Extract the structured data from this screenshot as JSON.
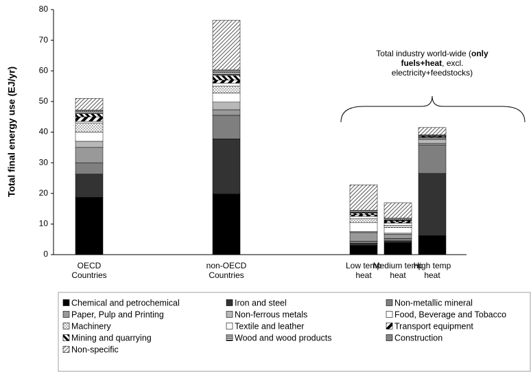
{
  "chart_data": {
    "type": "stacked_bar",
    "y_label": "Total final energy use (EJ/yr)",
    "annotation": [
      "Total industry world-wide (",
      "only fuels+heat",
      ", excl. electricity+feedstocks)"
    ],
    "categories": [
      "OECD\nCountries",
      null,
      null,
      null,
      "non-OECD\nCountries",
      null,
      null,
      null,
      "Low temp\nheat",
      "Medium temp\nheat",
      "High temp\nheat"
    ],
    "ylim": [
      0,
      80
    ],
    "yticks": [
      0,
      10,
      20,
      30,
      40,
      50,
      60,
      70,
      80
    ],
    "series": [
      {
        "name": "Chemical and petrochemical",
        "color": "#000000",
        "values": [
          18.7,
          null,
          null,
          null,
          19.8,
          null,
          null,
          null,
          3.0,
          3.9,
          6.2
        ]
      },
      {
        "name": "Iron and steel",
        "color": "#333333",
        "values": [
          7.6,
          null,
          null,
          null,
          18.0,
          null,
          null,
          null,
          0.7,
          0.6,
          20.3
        ]
      },
      {
        "name": "Non-metallic mineral",
        "color": "#7f7f7f",
        "values": [
          3.7,
          null,
          null,
          null,
          7.7,
          null,
          null,
          null,
          0.7,
          0.8,
          9.2
        ]
      },
      {
        "name": "Paper, Pulp and Printing",
        "color": "#999999",
        "values": [
          5.0,
          null,
          null,
          null,
          1.8,
          null,
          null,
          null,
          2.8,
          1.3,
          0.6
        ]
      },
      {
        "name": "Non-ferrous metals",
        "color": "#b8b8b8",
        "values": [
          2.0,
          null,
          null,
          null,
          2.5,
          null,
          null,
          null,
          0.3,
          0.4,
          1.2
        ]
      },
      {
        "name": "Food, Beverage and Tobacco",
        "color": "#ffffff",
        "values": [
          3.0,
          null,
          null,
          null,
          3.0,
          null,
          null,
          null,
          3.0,
          1.8,
          0.3
        ]
      },
      {
        "name": "Machinery",
        "color": "#ffffff",
        "pattern": "dots",
        "values": [
          3.0,
          null,
          null,
          null,
          2.2,
          null,
          null,
          null,
          1.2,
          0.7,
          0.3
        ]
      },
      {
        "name": "Textile and leather",
        "color": "#ffffff",
        "values": [
          0.5,
          null,
          null,
          null,
          1.0,
          null,
          null,
          null,
          0.8,
          0.8,
          0.2
        ]
      },
      {
        "name": "Transport equipment",
        "color": "#ffffff",
        "pattern": "wide",
        "values": [
          1.5,
          null,
          null,
          null,
          1.0,
          null,
          null,
          null,
          0.5,
          0.4,
          0.2
        ]
      },
      {
        "name": "Mining and quarrying",
        "color": "#ffffff",
        "pattern": "back",
        "values": [
          1.0,
          null,
          null,
          null,
          1.5,
          null,
          null,
          null,
          0.5,
          0.4,
          0.2
        ]
      },
      {
        "name": "Wood and wood products",
        "color": "#ffffff",
        "pattern": "hlines",
        "values": [
          0.5,
          null,
          null,
          null,
          0.8,
          null,
          null,
          null,
          0.3,
          0.2,
          0.1
        ]
      },
      {
        "name": "Construction",
        "color": "#ffffff",
        "pattern": "cross",
        "values": [
          0.7,
          null,
          null,
          null,
          1.0,
          null,
          null,
          null,
          0.7,
          0.6,
          0.3
        ]
      },
      {
        "name": "Non-specific",
        "color": "#ffffff",
        "pattern": "diag",
        "values": [
          3.8,
          null,
          null,
          null,
          16.2,
          null,
          null,
          null,
          8.3,
          5.0,
          2.4
        ]
      }
    ]
  }
}
